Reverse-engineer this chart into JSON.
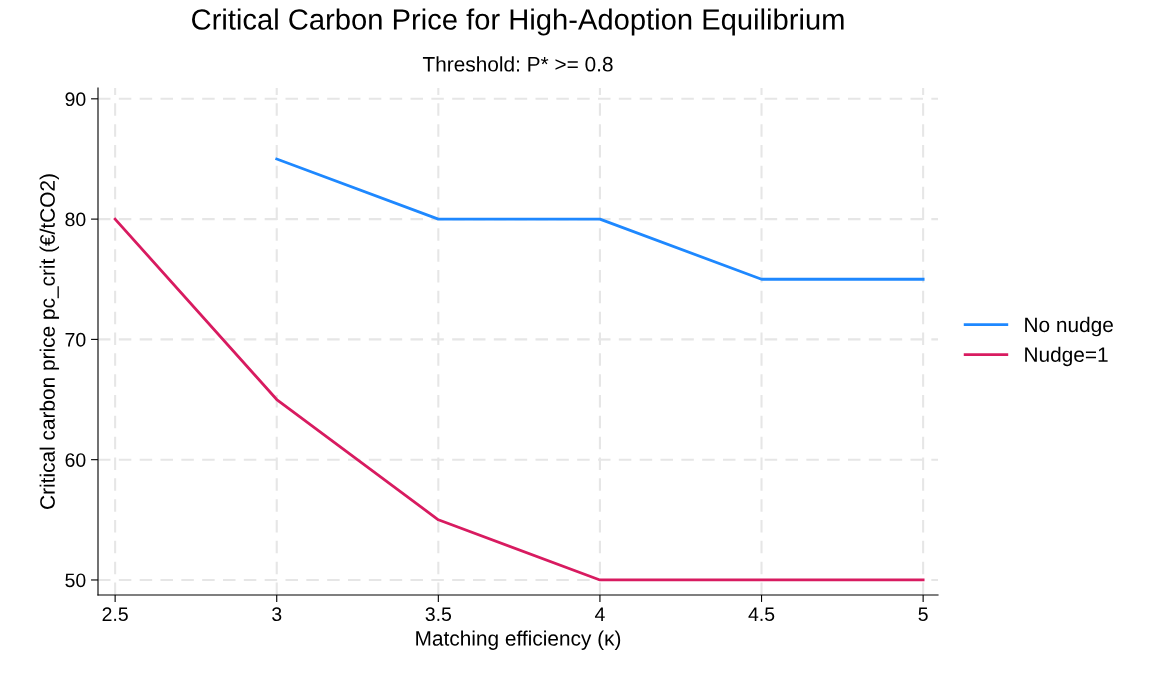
{
  "chart_data": {
    "type": "line",
    "title": "Critical Carbon Price for High-Adoption Equilibrium",
    "subtitle": "Threshold: P* >= 0.8",
    "xlabel": "Matching efficiency (κ)",
    "ylabel": "Critical carbon price pc_crit (€/tCO2)",
    "x": [
      2.5,
      3,
      3.5,
      4,
      4.5,
      5
    ],
    "series": [
      {
        "name": "No nudge",
        "color": "#1e88ff",
        "values": [
          null,
          85,
          80,
          80,
          75,
          75
        ]
      },
      {
        "name": "Nudge=1",
        "color": "#d81b60",
        "values": [
          80,
          65,
          55,
          50,
          50,
          50
        ]
      }
    ],
    "xlim": [
      2.447,
      5.046
    ],
    "xticks": [
      2.5,
      3,
      3.5,
      4,
      4.5,
      5
    ],
    "ylim": [
      48.75,
      90.9
    ],
    "yticks": [
      50,
      60,
      70,
      80,
      90
    ],
    "grid": true,
    "legend": "right",
    "marker": "none",
    "line_style": "solid"
  }
}
